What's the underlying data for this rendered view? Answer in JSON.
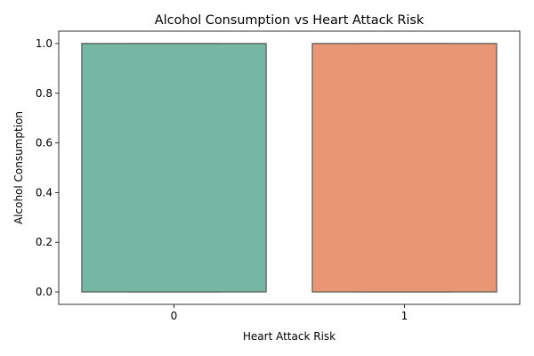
{
  "chart_data": {
    "type": "box",
    "title": "Alcohol Consumption vs Heart Attack Risk",
    "xlabel": "Heart Attack Risk",
    "ylabel": "Alcohol Consumption",
    "categories": [
      "0",
      "1"
    ],
    "boxes": [
      {
        "category": "0",
        "min": 0.0,
        "q1": 0.0,
        "median": 1.0,
        "q3": 1.0,
        "max": 1.0,
        "color": "#75b7a2"
      },
      {
        "category": "1",
        "min": 0.0,
        "q1": 0.0,
        "median": 1.0,
        "q3": 1.0,
        "max": 1.0,
        "color": "#e99675"
      }
    ],
    "ylim": [
      -0.05,
      1.05
    ],
    "yticks": [
      0.0,
      0.2,
      0.4,
      0.6,
      0.8,
      1.0
    ],
    "ytick_labels": [
      "0.0",
      "0.2",
      "0.4",
      "0.6",
      "0.8",
      "1.0"
    ],
    "grid": false,
    "edge_color": "#595959"
  }
}
